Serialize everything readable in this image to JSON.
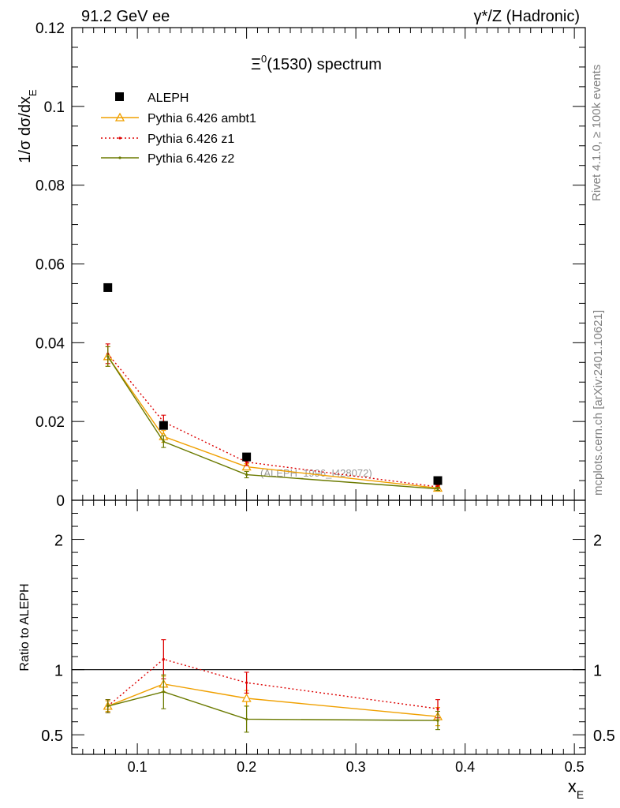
{
  "header": {
    "left": "91.2 GeV ee",
    "right": "γ*/Z (Hadronic)"
  },
  "side_labels": {
    "rivet": "Rivet 4.1.0, ≥ 100k events",
    "mcplots": "mcplots.cern.ch [arXiv:2401.10621]"
  },
  "chart_data": [
    {
      "type": "scatter",
      "panel": "main",
      "title_symbol": "Ξ",
      "title_superscript": "0",
      "title_rest": "(1530) spectrum",
      "ylabel": "1/σ  dσ/dx_E",
      "ylim": [
        0,
        0.12
      ],
      "xlim": [
        0.04,
        0.51
      ],
      "y_ticks": [
        0,
        0.02,
        0.04,
        0.06,
        0.08,
        0.1,
        0.12
      ],
      "y_tick_labels": [
        "0",
        "0.02",
        "0.04",
        "0.06",
        "0.08",
        "0.1",
        "0.12"
      ],
      "reference_label": "(ALEPH_1996_I428072)",
      "x": [
        0.073,
        0.124,
        0.2,
        0.375
      ],
      "series": [
        {
          "name": "ALEPH",
          "color": "#000000",
          "style": "data",
          "values": [
            0.054,
            0.019,
            0.011,
            0.005
          ]
        },
        {
          "name": "Pythia 6.426 ambt1",
          "color": "#f0a000",
          "style": "triangle",
          "values": [
            0.0365,
            0.0162,
            0.0085,
            0.0031
          ],
          "errors": [
            0.0025,
            0.0015,
            0.0008,
            0.0004
          ]
        },
        {
          "name": "Pythia 6.426 z1",
          "color": "#dd0000",
          "style": "dotted",
          "values": [
            0.0372,
            0.0199,
            0.0097,
            0.0034
          ],
          "errors": [
            0.0025,
            0.0017,
            0.0009,
            0.0004
          ]
        },
        {
          "name": "Pythia 6.426 z2",
          "color": "#6b7a00",
          "style": "solid",
          "values": [
            0.0365,
            0.0149,
            0.0065,
            0.0029
          ],
          "errors": [
            0.0025,
            0.0015,
            0.0008,
            0.0004
          ]
        }
      ]
    },
    {
      "type": "line",
      "panel": "ratio",
      "ylabel": "Ratio to ALEPH",
      "ylim": [
        0.35,
        2.3
      ],
      "xlabel": "x_E",
      "x_ticks": [
        0.1,
        0.2,
        0.3,
        0.4,
        0.5
      ],
      "x_tick_labels": [
        "0.1",
        "0.2",
        "0.3",
        "0.4",
        "0.5"
      ],
      "y_ticks": [
        0.5,
        1,
        2
      ],
      "y_tick_labels": [
        "0.5",
        "1",
        "2"
      ],
      "x": [
        0.073,
        0.124,
        0.2,
        0.375
      ],
      "series": [
        {
          "name": "Pythia 6.426 ambt1",
          "color": "#f0a000",
          "style": "triangle",
          "values": [
            0.72,
            0.89,
            0.78,
            0.64
          ],
          "errors": [
            0.04,
            0.06,
            0.06,
            0.07
          ]
        },
        {
          "name": "Pythia 6.426 z1",
          "color": "#dd0000",
          "style": "dotted",
          "values": [
            0.72,
            1.08,
            0.9,
            0.7
          ],
          "errors": [
            0.05,
            0.15,
            0.08,
            0.07
          ]
        },
        {
          "name": "Pythia 6.426 z2",
          "color": "#6b7a00",
          "style": "solid",
          "values": [
            0.72,
            0.83,
            0.62,
            0.61
          ],
          "errors": [
            0.05,
            0.13,
            0.1,
            0.07
          ]
        }
      ]
    }
  ]
}
